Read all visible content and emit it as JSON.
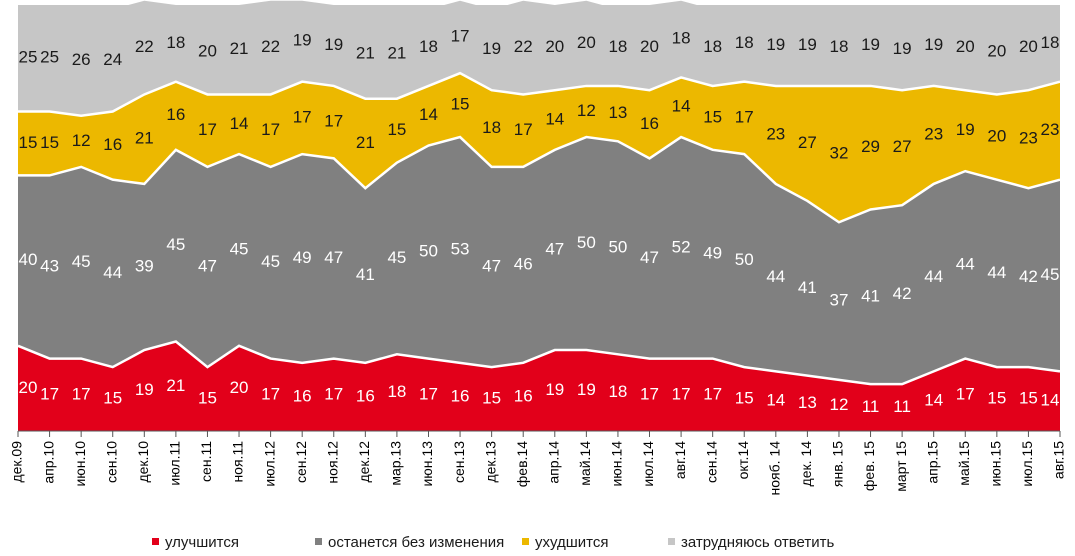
{
  "chart_data": {
    "type": "stacked-area",
    "categories": [
      "дек.09",
      "апр.10",
      "июн.10",
      "сен.10",
      "дек.10",
      "июл.11",
      "сен.11",
      "ноя.11",
      "июл.12",
      "сен.12",
      "ноя.12",
      "дек.12",
      "мар.13",
      "июн.13",
      "сен.13",
      "дек.13",
      "фев.14",
      "апр.14",
      "май.14",
      "июн.14",
      "июл.14",
      "авг.14",
      "сен.14",
      "окт.14",
      "нояб. 14",
      "дек. 14",
      "янв. 15",
      "фев. 15",
      "март 15",
      "апр.15",
      "май.15",
      "июн.15",
      "июл.15",
      "авг.15"
    ],
    "series": [
      {
        "name": "улучшится",
        "color": "#e2001a",
        "label_color": "#ffffff",
        "values": [
          20,
          17,
          17,
          15,
          19,
          21,
          15,
          20,
          17,
          16,
          17,
          16,
          18,
          17,
          16,
          15,
          16,
          19,
          19,
          18,
          17,
          17,
          17,
          15,
          14,
          13,
          12,
          11,
          11,
          14,
          17,
          15,
          15,
          14
        ]
      },
      {
        "name": "останется без изменения",
        "color": "#808080",
        "label_color": "#ffffff",
        "values": [
          40,
          43,
          45,
          44,
          39,
          45,
          47,
          45,
          45,
          49,
          47,
          41,
          45,
          50,
          53,
          47,
          46,
          47,
          50,
          50,
          47,
          52,
          49,
          50,
          44,
          41,
          37,
          41,
          42,
          44,
          44,
          44,
          42,
          45
        ]
      },
      {
        "name": "ухудшится",
        "color": "#ecb800",
        "label_color": "#1a1a1a",
        "values": [
          15,
          15,
          12,
          16,
          21,
          16,
          17,
          14,
          17,
          17,
          17,
          21,
          15,
          14,
          15,
          18,
          17,
          14,
          12,
          13,
          16,
          14,
          15,
          17,
          23,
          27,
          32,
          29,
          27,
          23,
          19,
          20,
          23,
          23
        ]
      },
      {
        "name": "затрудняюсь ответить",
        "color": "#c6c6c6",
        "label_color": "#1a1a1a",
        "values": [
          25,
          25,
          26,
          24,
          22,
          18,
          20,
          21,
          22,
          19,
          19,
          21,
          21,
          18,
          17,
          19,
          22,
          20,
          20,
          18,
          20,
          18,
          18,
          18,
          19,
          19,
          18,
          19,
          19,
          19,
          20,
          20,
          20,
          18
        ]
      }
    ],
    "ylim": [
      0,
      100
    ],
    "legend": "bottom"
  }
}
